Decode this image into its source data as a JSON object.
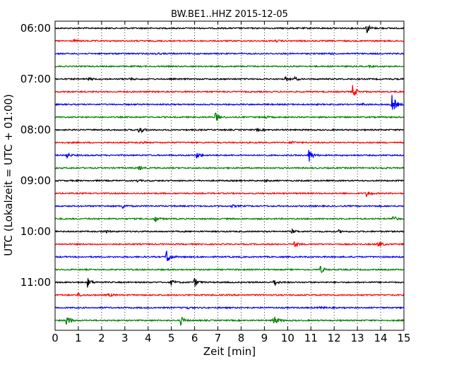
{
  "chart_data": {
    "type": "line",
    "title": "BW.BE1..HHZ 2015-12-05",
    "xlabel": "Zeit  [min]",
    "ylabel": "UTC (Lokalzeit = UTC + 01:00)",
    "xlim": [
      0,
      15
    ],
    "x_ticks": [
      "0",
      "1",
      "2",
      "3",
      "4",
      "5",
      "6",
      "7",
      "8",
      "9",
      "10",
      "11",
      "12",
      "13",
      "14",
      "15"
    ],
    "y_ticks": [
      "06:00",
      "07:00",
      "08:00",
      "09:00",
      "10:00",
      "11:00"
    ],
    "grid": "vertical dotted",
    "trace_interval_min": 15,
    "trace_colors": [
      "#000000",
      "#ff0000",
      "#0000ff",
      "#008000"
    ],
    "traces": [
      {
        "start": "06:00",
        "events": [
          {
            "t": 13.4,
            "amp": 0.9
          }
        ]
      },
      {
        "start": "06:15",
        "events": [
          {
            "t": 0.8,
            "amp": 0.15
          },
          {
            "t": 9.5,
            "amp": 0.15
          }
        ]
      },
      {
        "start": "06:30",
        "events": [
          {
            "t": 4.3,
            "amp": 0.2
          },
          {
            "t": 11.8,
            "amp": 0.15
          }
        ]
      },
      {
        "start": "06:45",
        "events": [
          {
            "t": 13.5,
            "amp": 0.1
          }
        ]
      },
      {
        "start": "07:00",
        "events": [
          {
            "t": 1.4,
            "amp": 0.35
          },
          {
            "t": 3.2,
            "amp": 0.15
          },
          {
            "t": 9.9,
            "amp": 0.3
          },
          {
            "t": 10.3,
            "amp": 0.3
          }
        ]
      },
      {
        "start": "07:15",
        "events": [
          {
            "t": 12.8,
            "amp": 1.2
          }
        ]
      },
      {
        "start": "07:30",
        "events": [
          {
            "t": 13.2,
            "amp": 0.2
          },
          {
            "t": 14.5,
            "amp": 2.0
          }
        ]
      },
      {
        "start": "07:45",
        "events": [
          {
            "t": 6.9,
            "amp": 0.9
          },
          {
            "t": 9.0,
            "amp": 0.3
          }
        ]
      },
      {
        "start": "08:00",
        "events": [
          {
            "t": 3.6,
            "amp": 0.9
          },
          {
            "t": 8.7,
            "amp": 0.15
          }
        ]
      },
      {
        "start": "08:15",
        "events": [
          {
            "t": 3.6,
            "amp": 0.2
          },
          {
            "t": 10.2,
            "amp": 0.3
          }
        ]
      },
      {
        "start": "08:30",
        "events": [
          {
            "t": 0.5,
            "amp": 0.5
          },
          {
            "t": 6.1,
            "amp": 0.6
          },
          {
            "t": 10.9,
            "amp": 1.5
          }
        ]
      },
      {
        "start": "08:45",
        "events": [
          {
            "t": 3.6,
            "amp": 0.4
          },
          {
            "t": 14.0,
            "amp": 0.15
          }
        ]
      },
      {
        "start": "09:00",
        "events": [
          {
            "t": 3.5,
            "amp": 0.2
          },
          {
            "t": 9.0,
            "amp": 0.15
          }
        ]
      },
      {
        "start": "09:15",
        "events": [
          {
            "t": 13.4,
            "amp": 0.6
          }
        ]
      },
      {
        "start": "09:30",
        "events": [
          {
            "t": 2.9,
            "amp": 0.4
          },
          {
            "t": 7.6,
            "amp": 0.2
          }
        ]
      },
      {
        "start": "09:45",
        "events": [
          {
            "t": 4.3,
            "amp": 0.6
          },
          {
            "t": 14.5,
            "amp": 0.7
          }
        ]
      },
      {
        "start": "10:00",
        "events": [
          {
            "t": 2.1,
            "amp": 0.35
          },
          {
            "t": 10.2,
            "amp": 0.3
          },
          {
            "t": 12.2,
            "amp": 0.2
          }
        ]
      },
      {
        "start": "10:15",
        "events": [
          {
            "t": 10.3,
            "amp": 0.5
          },
          {
            "t": 13.9,
            "amp": 0.7
          }
        ]
      },
      {
        "start": "10:30",
        "events": [
          {
            "t": 4.8,
            "amp": 1.6
          }
        ]
      },
      {
        "start": "10:45",
        "events": [
          {
            "t": 11.4,
            "amp": 0.7
          }
        ]
      },
      {
        "start": "11:00",
        "events": [
          {
            "t": 1.4,
            "amp": 0.9
          },
          {
            "t": 5.0,
            "amp": 0.5
          },
          {
            "t": 6.0,
            "amp": 0.8
          },
          {
            "t": 9.4,
            "amp": 0.7
          }
        ]
      },
      {
        "start": "11:15",
        "events": [
          {
            "t": 1.0,
            "amp": 0.3
          },
          {
            "t": 2.3,
            "amp": 0.3
          }
        ]
      },
      {
        "start": "11:30",
        "events": [
          {
            "t": 5.6,
            "amp": 0.3
          },
          {
            "t": 11.4,
            "amp": 0.2
          }
        ]
      },
      {
        "start": "11:45",
        "events": [
          {
            "t": 0.5,
            "amp": 1.2
          },
          {
            "t": 5.4,
            "amp": 0.8
          },
          {
            "t": 9.4,
            "amp": 1.1
          }
        ]
      }
    ]
  }
}
